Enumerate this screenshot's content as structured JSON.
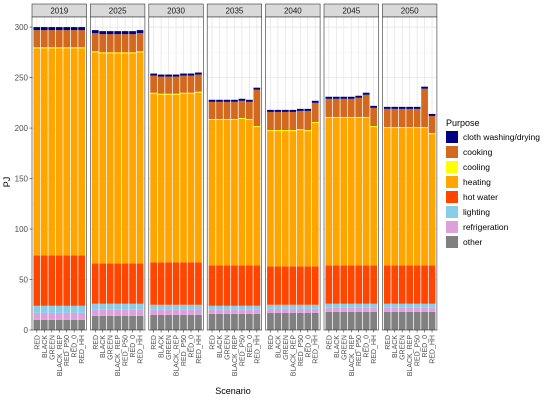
{
  "chart_data": {
    "type": "bar",
    "stacked": true,
    "facet_by": "year",
    "facets": [
      "2019",
      "2025",
      "2030",
      "2035",
      "2040",
      "2045",
      "2050"
    ],
    "categories": [
      "RED",
      "BLACK",
      "GREEN",
      "BLACK_REP",
      "RED_P50",
      "RED_0",
      "RED_HH"
    ],
    "xlabel": "Scenario",
    "ylabel": "PJ",
    "ylim": [
      0,
      310
    ],
    "yticks": [
      0,
      50,
      100,
      150,
      200,
      250,
      300
    ],
    "grid": true,
    "legend_title": "Purpose",
    "legend_position": "right",
    "series_order": [
      "other",
      "refrigeration",
      "lighting",
      "hot water",
      "heating",
      "cooling",
      "cooking",
      "cloth washing/drying"
    ],
    "legend_order": [
      "cloth washing/drying",
      "cooking",
      "cooling",
      "heating",
      "hot water",
      "lighting",
      "refrigeration",
      "other"
    ],
    "colors": {
      "cloth washing/drying": "#000080",
      "cooking": "#d2691e",
      "cooling": "#ffff00",
      "heating": "#ffa500",
      "hot water": "#ff4500",
      "lighting": "#87ceeb",
      "refrigeration": "#dda0dd",
      "other": "#808080"
    },
    "panels": [
      {
        "facet": "2019",
        "values": {
          "other": [
            10,
            10,
            10,
            10,
            10,
            10,
            10
          ],
          "refrigeration": [
            7,
            7,
            7,
            7,
            7,
            7,
            7
          ],
          "lighting": [
            7,
            7,
            7,
            7,
            7,
            7,
            7
          ],
          "hot water": [
            50,
            50,
            50,
            50,
            50,
            50,
            50
          ],
          "heating": [
            205,
            205,
            205,
            205,
            205,
            205,
            205
          ],
          "cooling": [
            1,
            1,
            1,
            1,
            1,
            1,
            1
          ],
          "cooking": [
            17,
            17,
            17,
            17,
            17,
            17,
            17
          ],
          "cloth washing/drying": [
            3,
            3,
            3,
            3,
            3,
            3,
            3
          ]
        }
      },
      {
        "facet": "2025",
        "values": {
          "other": [
            14,
            14,
            14,
            14,
            14,
            14,
            14
          ],
          "refrigeration": [
            6,
            6,
            6,
            6,
            6,
            6,
            6
          ],
          "lighting": [
            6,
            6,
            6,
            6,
            6,
            6,
            6
          ],
          "hot water": [
            40,
            40,
            40,
            40,
            40,
            40,
            40
          ],
          "heating": [
            209,
            208,
            208,
            208,
            208,
            208,
            209
          ],
          "cooling": [
            1,
            1,
            1,
            1,
            1,
            1,
            1
          ],
          "cooking": [
            18,
            18,
            18,
            18,
            18,
            18,
            18
          ],
          "cloth washing/drying": [
            3,
            3,
            3,
            3,
            3,
            3,
            3
          ]
        }
      },
      {
        "facet": "2030",
        "values": {
          "other": [
            15,
            15,
            15,
            15,
            15,
            15,
            15
          ],
          "refrigeration": [
            5,
            5,
            5,
            5,
            5,
            5,
            5
          ],
          "lighting": [
            5,
            5,
            5,
            5,
            5,
            5,
            5
          ],
          "hot water": [
            42,
            42,
            42,
            42,
            42,
            42,
            42
          ],
          "heating": [
            167,
            166,
            166,
            166,
            167,
            167,
            168
          ],
          "cooling": [
            1,
            1,
            1,
            1,
            1,
            1,
            1
          ],
          "cooking": [
            17,
            17,
            17,
            17,
            17,
            17,
            17
          ],
          "cloth washing/drying": [
            2,
            2,
            2,
            2,
            2,
            2,
            2
          ]
        }
      },
      {
        "facet": "2035",
        "values": {
          "other": [
            16,
            16,
            16,
            16,
            16,
            16,
            16
          ],
          "refrigeration": [
            4,
            4,
            4,
            4,
            4,
            4,
            4
          ],
          "lighting": [
            4,
            4,
            4,
            4,
            4,
            4,
            4
          ],
          "hot water": [
            40,
            40,
            40,
            40,
            40,
            40,
            40
          ],
          "heating": [
            144,
            144,
            144,
            144,
            145,
            144,
            137
          ],
          "cooling": [
            1,
            1,
            1,
            1,
            1,
            1,
            1
          ],
          "cooking": [
            17,
            17,
            17,
            17,
            17,
            17,
            36
          ],
          "cloth washing/drying": [
            2,
            2,
            2,
            2,
            2,
            2,
            2
          ]
        }
      },
      {
        "facet": "2040",
        "values": {
          "other": [
            17,
            17,
            17,
            17,
            17,
            17,
            17
          ],
          "refrigeration": [
            4,
            4,
            4,
            4,
            4,
            4,
            4
          ],
          "lighting": [
            4,
            4,
            4,
            4,
            4,
            4,
            4
          ],
          "hot water": [
            38,
            38,
            38,
            38,
            38,
            38,
            38
          ],
          "heating": [
            134,
            134,
            134,
            134,
            135,
            134,
            142
          ],
          "cooling": [
            1,
            1,
            1,
            1,
            1,
            1,
            1
          ],
          "cooking": [
            18,
            18,
            18,
            18,
            18,
            19,
            19
          ],
          "cloth washing/drying": [
            2,
            2,
            2,
            2,
            2,
            2,
            2
          ]
        }
      },
      {
        "facet": "2045",
        "values": {
          "other": [
            18,
            18,
            18,
            18,
            18,
            18,
            18
          ],
          "refrigeration": [
            4,
            4,
            4,
            4,
            4,
            4,
            4
          ],
          "lighting": [
            4,
            4,
            4,
            4,
            4,
            4,
            4
          ],
          "hot water": [
            38,
            38,
            38,
            38,
            38,
            38,
            38
          ],
          "heating": [
            146,
            146,
            146,
            146,
            146,
            146,
            137
          ],
          "cooling": [
            1,
            1,
            1,
            1,
            1,
            1,
            1
          ],
          "cooking": [
            18,
            18,
            18,
            18,
            19,
            22,
            18
          ],
          "cloth washing/drying": [
            2,
            2,
            2,
            2,
            2,
            2,
            2
          ]
        }
      },
      {
        "facet": "2050",
        "values": {
          "other": [
            18,
            18,
            18,
            18,
            18,
            18,
            18
          ],
          "refrigeration": [
            4,
            4,
            4,
            4,
            4,
            4,
            4
          ],
          "lighting": [
            4,
            4,
            4,
            4,
            4,
            4,
            4
          ],
          "hot water": [
            38,
            38,
            38,
            38,
            38,
            38,
            38
          ],
          "heating": [
            136,
            136,
            136,
            136,
            136,
            136,
            130
          ],
          "cooling": [
            1,
            1,
            1,
            1,
            1,
            1,
            1
          ],
          "cooking": [
            18,
            18,
            18,
            18,
            18,
            38,
            17
          ],
          "cloth washing/drying": [
            2,
            2,
            2,
            2,
            2,
            2,
            2
          ]
        }
      }
    ]
  }
}
